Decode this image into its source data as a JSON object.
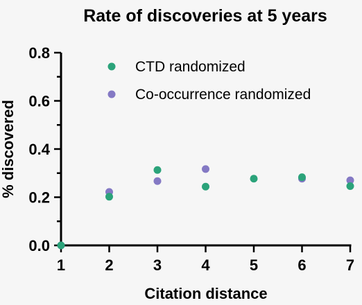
{
  "chart_data": {
    "type": "scatter",
    "title": "Rate of discoveries at 5 years",
    "xlabel": "Citation distance",
    "ylabel": "% discovered",
    "xlim": [
      1,
      7
    ],
    "ylim": [
      0,
      0.8
    ],
    "x_ticks": [
      1,
      2,
      3,
      4,
      5,
      6,
      7
    ],
    "y_ticks": [
      "0.0",
      "0.2",
      "0.4",
      "0.6",
      "0.8"
    ],
    "y_minor_step": 0.1,
    "grid": false,
    "legend_position": "top-right",
    "series": [
      {
        "name": "CTD randomized",
        "color": "#2ba37a",
        "points": [
          {
            "x": 1,
            "y": 0.0
          },
          {
            "x": 2,
            "y": 0.202
          },
          {
            "x": 3,
            "y": 0.313
          },
          {
            "x": 4,
            "y": 0.244
          },
          {
            "x": 5,
            "y": 0.277
          },
          {
            "x": 6,
            "y": 0.283
          },
          {
            "x": 7,
            "y": 0.246
          }
        ]
      },
      {
        "name": "Co-occurrence randomized",
        "color": "#8479c4",
        "points": [
          {
            "x": 1,
            "y": 0.0
          },
          {
            "x": 2,
            "y": 0.222
          },
          {
            "x": 3,
            "y": 0.267
          },
          {
            "x": 4,
            "y": 0.317
          },
          {
            "x": 6,
            "y": 0.277
          },
          {
            "x": 7,
            "y": 0.27
          }
        ]
      }
    ]
  }
}
